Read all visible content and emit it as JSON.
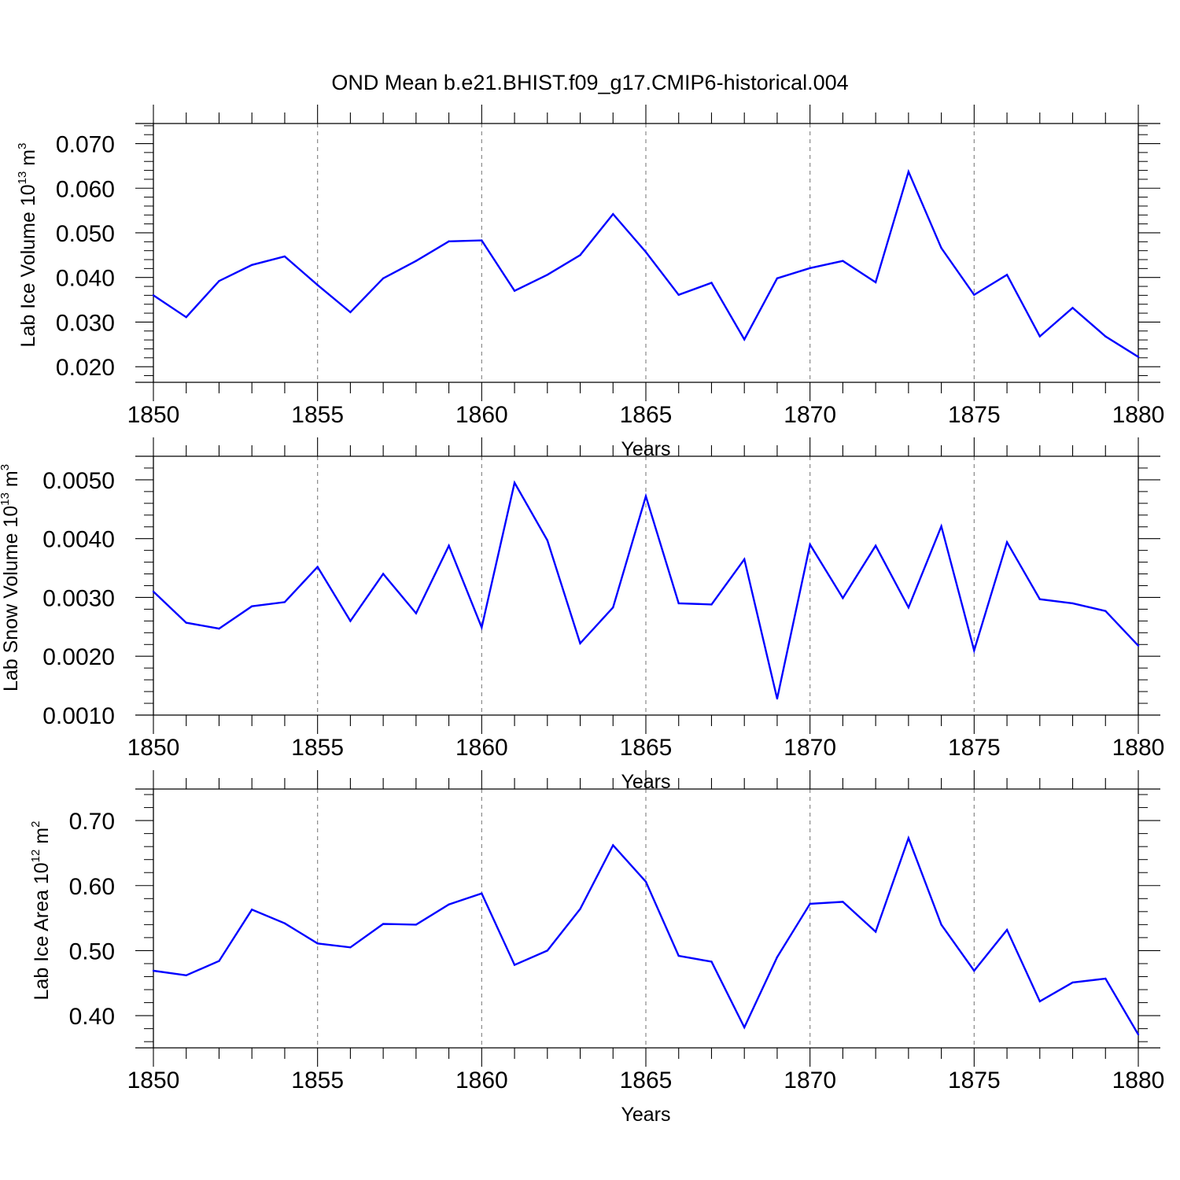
{
  "title": "OND Mean b.e21.BHIST.f09_g17.CMIP6-historical.004",
  "chart_data": [
    {
      "type": "line",
      "ylabel": "Lab Ice Volume 10",
      "ylabel_exp": "13",
      "ylabel_unit": " m",
      "ylabel_unit_exp": "3",
      "xlabel": "Years",
      "xlim": [
        1850,
        1880
      ],
      "ylim": [
        0.0165,
        0.0745
      ],
      "y_tick_values": [
        0.02,
        0.03,
        0.04,
        0.05,
        0.06,
        0.07
      ],
      "y_tick_labels": [
        "0.020",
        "0.030",
        "0.040",
        "0.050",
        "0.060",
        "0.070"
      ],
      "x_tick_values": [
        1850,
        1855,
        1860,
        1865,
        1870,
        1875,
        1880
      ],
      "x_tick_labels": [
        "1850",
        "1855",
        "1860",
        "1865",
        "1870",
        "1875",
        "1880"
      ],
      "line_color": "#0000ff",
      "grid": "vertical dashed at labeled x ticks",
      "x": [
        1850,
        1851,
        1852,
        1853,
        1854,
        1855,
        1856,
        1857,
        1858,
        1859,
        1860,
        1861,
        1862,
        1863,
        1864,
        1865,
        1866,
        1867,
        1868,
        1869,
        1870,
        1871,
        1872,
        1873,
        1874,
        1875,
        1876,
        1877,
        1878,
        1879,
        1880
      ],
      "values": [
        0.036,
        0.0311,
        0.0392,
        0.0428,
        0.0447,
        0.0383,
        0.0322,
        0.0398,
        0.0437,
        0.0481,
        0.0483,
        0.037,
        0.0406,
        0.045,
        0.0542,
        0.0457,
        0.0361,
        0.0388,
        0.0261,
        0.0398,
        0.0421,
        0.0437,
        0.0389,
        0.0637,
        0.0466,
        0.0361,
        0.0406,
        0.0268,
        0.0332,
        0.0268,
        0.0222
      ]
    },
    {
      "type": "line",
      "ylabel": "Lab Snow Volume 10",
      "ylabel_exp": "13",
      "ylabel_unit": " m",
      "ylabel_unit_exp": "3",
      "xlabel": "Years",
      "xlim": [
        1850,
        1880
      ],
      "ylim": [
        0.001,
        0.0054
      ],
      "y_tick_values": [
        0.001,
        0.002,
        0.003,
        0.004,
        0.005
      ],
      "y_tick_labels": [
        "0.0010",
        "0.0020",
        "0.0030",
        "0.0040",
        "0.0050"
      ],
      "x_tick_values": [
        1850,
        1855,
        1860,
        1865,
        1870,
        1875,
        1880
      ],
      "x_tick_labels": [
        "1850",
        "1855",
        "1860",
        "1865",
        "1870",
        "1875",
        "1880"
      ],
      "line_color": "#0000ff",
      "grid": "vertical dashed at labeled x ticks",
      "x": [
        1850,
        1851,
        1852,
        1853,
        1854,
        1855,
        1856,
        1857,
        1858,
        1859,
        1860,
        1861,
        1862,
        1863,
        1864,
        1865,
        1866,
        1867,
        1868,
        1869,
        1870,
        1871,
        1872,
        1873,
        1874,
        1875,
        1876,
        1877,
        1878,
        1879,
        1880
      ],
      "values": [
        0.0031,
        0.00257,
        0.00247,
        0.00285,
        0.00292,
        0.00352,
        0.0026,
        0.0034,
        0.00273,
        0.00388,
        0.00249,
        0.00495,
        0.00397,
        0.00222,
        0.00283,
        0.00472,
        0.0029,
        0.00288,
        0.00365,
        0.00128,
        0.0039,
        0.00299,
        0.00388,
        0.00283,
        0.00421,
        0.0021,
        0.00394,
        0.00297,
        0.0029,
        0.00277,
        0.00218
      ]
    },
    {
      "type": "line",
      "ylabel": "Lab Ice Area 10",
      "ylabel_exp": "12",
      "ylabel_unit": " m",
      "ylabel_unit_exp": "2",
      "xlabel": "Years",
      "xlim": [
        1850,
        1880
      ],
      "ylim": [
        0.3505,
        0.7485
      ],
      "y_tick_values": [
        0.4,
        0.5,
        0.6,
        0.7
      ],
      "y_tick_labels": [
        "0.40",
        "0.50",
        "0.60",
        "0.70"
      ],
      "x_tick_values": [
        1850,
        1855,
        1860,
        1865,
        1870,
        1875,
        1880
      ],
      "x_tick_labels": [
        "1850",
        "1855",
        "1860",
        "1865",
        "1870",
        "1875",
        "1880"
      ],
      "line_color": "#0000ff",
      "grid": "vertical dashed at labeled x ticks",
      "x": [
        1850,
        1851,
        1852,
        1853,
        1854,
        1855,
        1856,
        1857,
        1858,
        1859,
        1860,
        1861,
        1862,
        1863,
        1864,
        1865,
        1866,
        1867,
        1868,
        1869,
        1870,
        1871,
        1872,
        1873,
        1874,
        1875,
        1876,
        1877,
        1878,
        1879,
        1880
      ],
      "values": [
        0.469,
        0.462,
        0.484,
        0.563,
        0.542,
        0.511,
        0.505,
        0.541,
        0.54,
        0.571,
        0.588,
        0.478,
        0.5,
        0.564,
        0.662,
        0.606,
        0.492,
        0.483,
        0.382,
        0.49,
        0.572,
        0.575,
        0.529,
        0.673,
        0.54,
        0.469,
        0.532,
        0.422,
        0.451,
        0.457,
        0.371
      ]
    }
  ]
}
